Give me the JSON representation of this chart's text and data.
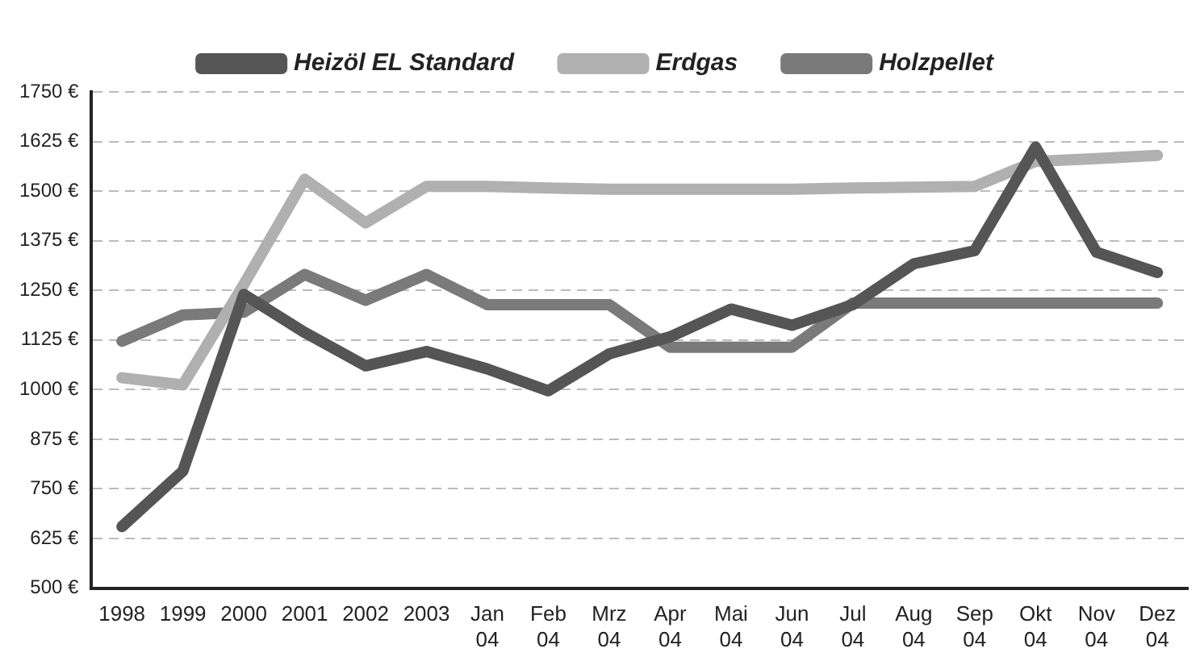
{
  "chart_data": {
    "type": "line",
    "categories": [
      "1998",
      "1999",
      "2000",
      "2001",
      "2002",
      "2003",
      "Jan 04",
      "Feb 04",
      "Mrz 04",
      "Apr 04",
      "Mai 04",
      "Jun 04",
      "Jul 04",
      "Aug 04",
      "Sep 04",
      "Okt 04",
      "Nov 04",
      "Dez 04"
    ],
    "series": [
      {
        "name": "Heizöl EL Standard",
        "color": "#555555",
        "values": [
          655,
          795,
          1240,
          1144,
          1060,
          1096,
          1052,
          997,
          1090,
          1133,
          1203,
          1162,
          1214,
          1317,
          1350,
          1611,
          1346,
          1295
        ]
      },
      {
        "name": "Erdgas",
        "color": "#b0b0b0",
        "values": [
          1030,
          1012,
          1265,
          1530,
          1420,
          1512,
          1512,
          1508,
          1505,
          1505,
          1505,
          1505,
          1508,
          1510,
          1512,
          1575,
          1582,
          1590
        ]
      },
      {
        "name": "Holzpellet",
        "color": "#7a7a7a",
        "values": [
          1122,
          1188,
          1195,
          1290,
          1225,
          1290,
          1214,
          1214,
          1214,
          1107,
          1107,
          1107,
          1218,
          1218,
          1218,
          1218,
          1218,
          1218
        ]
      }
    ],
    "ylim": [
      500,
      1750
    ],
    "yticks": [
      {
        "value": 500,
        "label": "500 €"
      },
      {
        "value": 625,
        "label": "625 €"
      },
      {
        "value": 750,
        "label": "750 €"
      },
      {
        "value": 875,
        "label": "875 €"
      },
      {
        "value": 1000,
        "label": "1000 €"
      },
      {
        "value": 1125,
        "label": "1125 €"
      },
      {
        "value": 1250,
        "label": "1250 €"
      },
      {
        "value": 1375,
        "label": "1375 €"
      },
      {
        "value": 1500,
        "label": "1500 €"
      },
      {
        "value": 1625,
        "label": "1625 €"
      },
      {
        "value": 1750,
        "label": "1750 €"
      }
    ],
    "grid": "y",
    "legend": "top",
    "marker": "none",
    "line_style": "solid"
  }
}
